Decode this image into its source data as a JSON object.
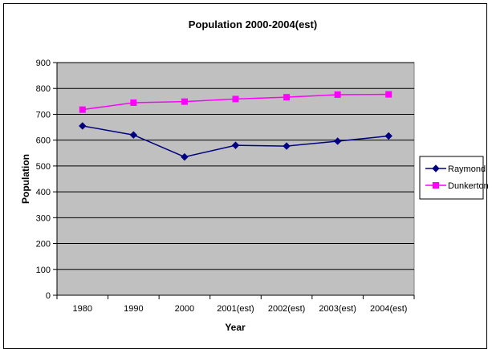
{
  "chart_data": {
    "type": "line",
    "title": "Population 2000-2004(est)",
    "xlabel": "Year",
    "ylabel": "Population",
    "categories": [
      "1980",
      "1990",
      "2000",
      "2001(est)",
      "2002(est)",
      "2003(est)",
      "2004(est)"
    ],
    "series": [
      {
        "name": "Raymond",
        "values": [
          655,
          620,
          535,
          580,
          577,
          596,
          616
        ],
        "color": "#000080",
        "marker": "diamond"
      },
      {
        "name": "Dunkerton",
        "values": [
          718,
          745,
          749,
          759,
          766,
          776,
          777
        ],
        "color": "#ff00ff",
        "marker": "square"
      }
    ],
    "ylim": [
      0,
      900
    ],
    "yticks": [
      0,
      100,
      200,
      300,
      400,
      500,
      600,
      700,
      800,
      900
    ],
    "grid": true,
    "plot_background": "#c0c0c0",
    "legend_position": "right"
  }
}
